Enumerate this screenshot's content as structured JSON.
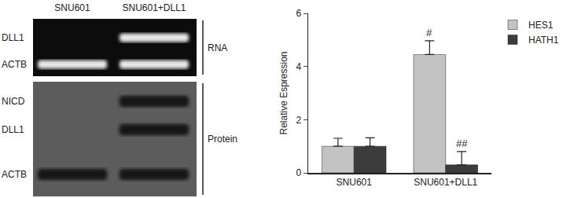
{
  "gel": {
    "lanes": [
      "SNU601",
      "SNU601+DLL1"
    ],
    "panels": [
      {
        "label": "RNA",
        "rows": [
          {
            "name": "DLL1",
            "bands": [
              false,
              true
            ]
          },
          {
            "name": "ACTB",
            "bands": [
              true,
              true
            ]
          }
        ]
      },
      {
        "label": "Protein",
        "rows": [
          {
            "name": "NICD",
            "bands": [
              false,
              true
            ]
          },
          {
            "name": "DLL1",
            "bands": [
              false,
              true
            ]
          },
          {
            "name": "ACTB",
            "bands": [
              true,
              true
            ]
          }
        ]
      }
    ]
  },
  "chart_data": {
    "type": "bar",
    "y_label": "Relative Espression",
    "categories": [
      "SNU601",
      "SNU601+DLL1"
    ],
    "series": [
      {
        "name": "HES1",
        "color": "#c3c3c3",
        "values": [
          1.0,
          4.45
        ],
        "errors": [
          0.3,
          0.52
        ]
      },
      {
        "name": "HATH1",
        "color": "#3c3c3c",
        "values": [
          1.0,
          0.3
        ],
        "errors": [
          0.32,
          0.5
        ]
      }
    ],
    "ylim": [
      0,
      6
    ],
    "yticks": [
      0,
      2,
      4,
      6
    ],
    "grid": false,
    "legend": "upper right",
    "annotations": [
      {
        "text": "#",
        "category": "SNU601+DLL1",
        "series": "HES1"
      },
      {
        "text": "##",
        "category": "SNU601+DLL1",
        "series": "HATH1"
      }
    ]
  }
}
